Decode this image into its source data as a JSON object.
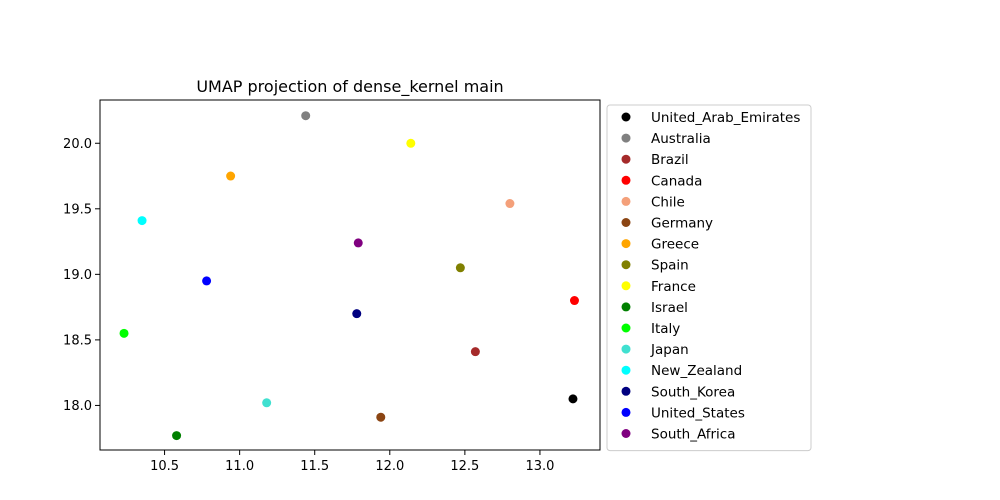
{
  "chart_data": {
    "type": "scatter",
    "title": "UMAP projection of dense_kernel main",
    "xlabel": "",
    "ylabel": "",
    "xlim": [
      10.07,
      13.4
    ],
    "ylim": [
      17.66,
      20.33
    ],
    "x_ticks": [
      10.5,
      11.0,
      11.5,
      12.0,
      12.5,
      13.0
    ],
    "x_tick_labels": [
      "10.5",
      "11.0",
      "11.5",
      "12.0",
      "12.5",
      "13.0"
    ],
    "y_ticks": [
      18.0,
      18.5,
      19.0,
      19.5,
      20.0
    ],
    "y_tick_labels": [
      "18.0",
      "18.5",
      "19.0",
      "19.5",
      "20.0"
    ],
    "grid": false,
    "legend_position": "outside-right",
    "series": [
      {
        "name": "United_Arab_Emirates",
        "color": "#000000",
        "x": 13.22,
        "y": 18.05
      },
      {
        "name": "Australia",
        "color": "#808080",
        "x": 11.44,
        "y": 20.21
      },
      {
        "name": "Brazil",
        "color": "#a52a2a",
        "x": 12.57,
        "y": 18.41
      },
      {
        "name": "Canada",
        "color": "#ff0000",
        "x": 13.23,
        "y": 18.8
      },
      {
        "name": "Chile",
        "color": "#f4a07a",
        "x": 12.8,
        "y": 19.54
      },
      {
        "name": "Germany",
        "color": "#8b4513",
        "x": 11.94,
        "y": 17.91
      },
      {
        "name": "Greece",
        "color": "#ffa500",
        "x": 10.94,
        "y": 19.75
      },
      {
        "name": "Spain",
        "color": "#808000",
        "x": 12.47,
        "y": 19.05
      },
      {
        "name": "France",
        "color": "#ffff00",
        "x": 12.14,
        "y": 20.0
      },
      {
        "name": "Israel",
        "color": "#008000",
        "x": 10.58,
        "y": 17.77
      },
      {
        "name": "Italy",
        "color": "#00ff00",
        "x": 10.23,
        "y": 18.55
      },
      {
        "name": "Japan",
        "color": "#40e0d0",
        "x": 11.18,
        "y": 18.02
      },
      {
        "name": "New_Zealand",
        "color": "#00ffff",
        "x": 10.35,
        "y": 19.41
      },
      {
        "name": "South_Korea",
        "color": "#000080",
        "x": 11.78,
        "y": 18.7
      },
      {
        "name": "United_States",
        "color": "#0000ff",
        "x": 10.78,
        "y": 18.95
      },
      {
        "name": "South_Africa",
        "color": "#800080",
        "x": 11.79,
        "y": 19.24
      }
    ]
  }
}
